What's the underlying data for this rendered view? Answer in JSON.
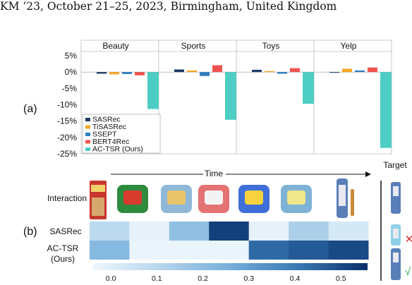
{
  "header": {
    "running_head": "KM ’23, October 21–25, 2023, Birmingham, United Kingdom"
  },
  "panels": {
    "a": "(a)",
    "b": "(b)"
  },
  "chart_data": {
    "type": "bar",
    "panel_titles": [
      "Beauty",
      "Sports",
      "Toys",
      "Yelp"
    ],
    "y_ticks": [
      "5%",
      "0%",
      "-5%",
      "-10%",
      "-15%",
      "-20%",
      "-25%"
    ],
    "ylim": [
      -25,
      5
    ],
    "legend_placement": "lower-left",
    "series": [
      {
        "name": "SASRec",
        "color": "#1f3b66",
        "values": [
          -0.5,
          0.8,
          0.7,
          -0.2
        ]
      },
      {
        "name": "TiSASRec",
        "color": "#f5a623",
        "values": [
          -0.7,
          0.5,
          0.3,
          1.0
        ]
      },
      {
        "name": "SSEPT",
        "color": "#2f7fc1",
        "values": [
          -0.6,
          -1.2,
          -0.5,
          0.5
        ]
      },
      {
        "name": "BERT4Rec",
        "color": "#ef5350",
        "values": [
          -1.0,
          2.1,
          1.2,
          1.4
        ]
      },
      {
        "name": "AC-TSR (Ours)",
        "color": "#4ecdc4",
        "values": [
          -11.3,
          -14.6,
          -9.7,
          -23.2
        ]
      }
    ]
  },
  "sequence": {
    "time_label": "Time",
    "target_label": "Target",
    "interaction_label": "Interaction",
    "rows": [
      {
        "label": "SASRec",
        "values": [
          0.12,
          0.02,
          0.22,
          0.52,
          0.02,
          0.16,
          0.06
        ]
      },
      {
        "label": "AC-TSR",
        "label2": "(Ours)",
        "values": [
          0.24,
          0.01,
          0.01,
          0.01,
          0.44,
          0.47,
          0.5
        ]
      }
    ],
    "colorbar_ticks": [
      "0.0",
      "0.1",
      "0.2",
      "0.3",
      "0.4",
      "0.5"
    ],
    "colorbar_range": [
      0,
      0.55
    ],
    "items": [
      "jenga-box",
      "stocking",
      "toy-house",
      "toy-phone",
      "kids-phone",
      "tea-set",
      "toy-wand"
    ],
    "wrong_mark": "✕",
    "right_mark": "√"
  }
}
